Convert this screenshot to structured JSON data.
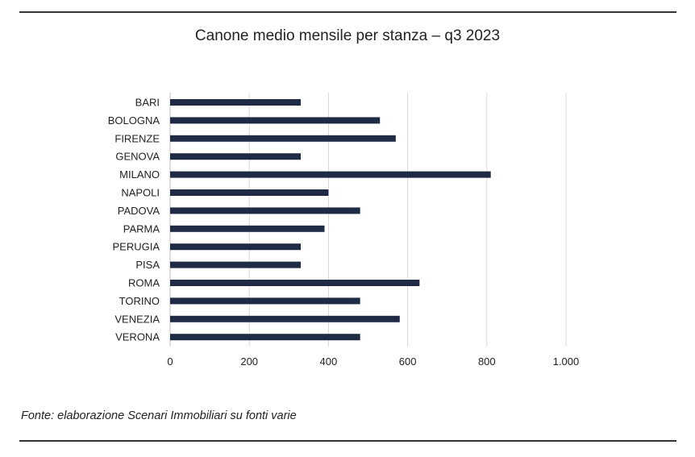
{
  "chart_data": {
    "type": "bar",
    "orientation": "horizontal",
    "title": "Canone medio mensile per stanza – q3 2023",
    "categories": [
      "BARI",
      "BOLOGNA",
      "FIRENZE",
      "GENOVA",
      "MILANO",
      "NAPOLI",
      "PADOVA",
      "PARMA",
      "PERUGIA",
      "PISA",
      "ROMA",
      "TORINO",
      "VENEZIA",
      "VERONA"
    ],
    "values": [
      330,
      530,
      570,
      330,
      810,
      400,
      480,
      390,
      330,
      330,
      630,
      480,
      580,
      480
    ],
    "xlim": [
      0,
      1000
    ],
    "xticks": [
      0,
      200,
      400,
      600,
      800,
      1000
    ],
    "xtick_labels": [
      "0",
      "200",
      "400",
      "600",
      "800",
      "1.000"
    ],
    "xlabel": "",
    "ylabel": "",
    "grid": "vertical",
    "bar_color": "#1f2a44",
    "legend": "none"
  },
  "footer": {
    "source": "Fonte: elaborazione Scenari Immobiliari su fonti varie"
  }
}
